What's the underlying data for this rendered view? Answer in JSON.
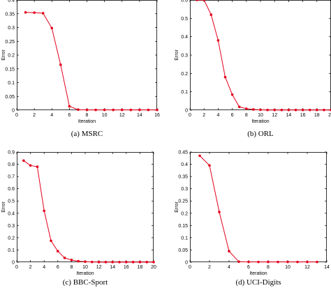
{
  "series_color": "#e3001b",
  "chart_data": [
    {
      "type": "line",
      "caption": "(a)  MSRC",
      "xlabel": "Iteration",
      "ylabel": "Error",
      "xlim": [
        0,
        16
      ],
      "ylim": [
        0,
        0.4
      ],
      "xticks": [
        0,
        2,
        4,
        6,
        8,
        10,
        12,
        14,
        16
      ],
      "yticks": [
        0,
        0.05,
        0.1,
        0.15,
        0.2,
        0.25,
        0.3,
        0.35,
        0.4
      ],
      "x": [
        1,
        2,
        3,
        4,
        5,
        6,
        7,
        8,
        9,
        10,
        11,
        12,
        13,
        14,
        15,
        16
      ],
      "y": [
        0.355,
        0.354,
        0.352,
        0.298,
        0.165,
        0.014,
        0.002,
        0.001,
        0.001,
        0.001,
        0.001,
        0.001,
        0.001,
        0.001,
        0.001,
        0.001
      ]
    },
    {
      "type": "line",
      "caption": "(b)  ORL",
      "xlabel": "Iteration",
      "ylabel": "Error",
      "xlim": [
        0,
        20
      ],
      "ylim": [
        0,
        0.6
      ],
      "xticks": [
        0,
        2,
        4,
        6,
        8,
        10,
        12,
        14,
        16,
        18,
        20
      ],
      "yticks": [
        0,
        0.1,
        0.2,
        0.3,
        0.4,
        0.5,
        0.6
      ],
      "x": [
        1,
        2,
        3,
        4,
        5,
        6,
        7,
        8,
        9,
        10,
        11,
        12,
        13,
        14,
        15,
        16,
        17,
        18,
        19,
        20
      ],
      "y": [
        0.6,
        0.6,
        0.52,
        0.38,
        0.18,
        0.085,
        0.018,
        0.008,
        0.004,
        0.002,
        0.001,
        0.001,
        0.001,
        0.001,
        0.001,
        0.001,
        0.001,
        0.001,
        0.001,
        0.001
      ]
    },
    {
      "type": "line",
      "caption": "(c)  BBC-Sport",
      "xlabel": "Iteration",
      "ylabel": "Error",
      "xlim": [
        0,
        20
      ],
      "ylim": [
        0,
        0.9
      ],
      "xticks": [
        0,
        2,
        4,
        6,
        8,
        10,
        12,
        14,
        16,
        18,
        20
      ],
      "yticks": [
        0,
        0.1,
        0.2,
        0.3,
        0.4,
        0.5,
        0.6,
        0.7,
        0.8,
        0.9
      ],
      "x": [
        1,
        2,
        3,
        4,
        5,
        6,
        7,
        8,
        9,
        10,
        11,
        12,
        13,
        14,
        15,
        16,
        17,
        18,
        19,
        20
      ],
      "y": [
        0.83,
        0.79,
        0.78,
        0.42,
        0.175,
        0.09,
        0.035,
        0.018,
        0.008,
        0.004,
        0.002,
        0.001,
        0.001,
        0.001,
        0.001,
        0.001,
        0.001,
        0.001,
        0.001,
        0.001
      ]
    },
    {
      "type": "line",
      "caption": "(d)  UCI-Digits",
      "xlabel": "Iteration",
      "ylabel": "Error",
      "xlim": [
        0,
        14
      ],
      "ylim": [
        0,
        0.45
      ],
      "xticks": [
        0,
        2,
        4,
        6,
        8,
        10,
        12,
        14
      ],
      "yticks": [
        0,
        0.05,
        0.1,
        0.15,
        0.2,
        0.25,
        0.3,
        0.35,
        0.4,
        0.45
      ],
      "x": [
        1,
        2,
        3,
        4,
        5,
        6,
        7,
        8,
        9,
        10,
        11,
        12,
        13
      ],
      "y": [
        0.435,
        0.395,
        0.205,
        0.045,
        0.002,
        0.001,
        0.001,
        0.001,
        0.001,
        0.001,
        0.001,
        0.001,
        0.001
      ]
    }
  ]
}
